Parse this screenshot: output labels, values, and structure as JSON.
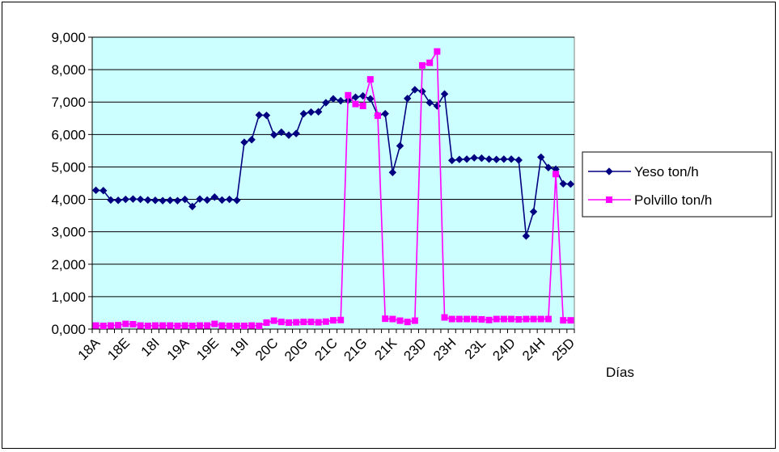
{
  "chart_data": {
    "type": "line",
    "title": "",
    "xlabel": "Días",
    "ylabel": "",
    "ylim": [
      0,
      9000
    ],
    "y_ticks": [
      0,
      1000,
      2000,
      3000,
      4000,
      5000,
      6000,
      7000,
      8000,
      9000
    ],
    "y_tick_labels": [
      "0,000",
      "1,000",
      "2,000",
      "3,000",
      "4,000",
      "5,000",
      "6,000",
      "7,000",
      "8,000",
      "9,000"
    ],
    "x_tick_labels": [
      "18A",
      "18E",
      "18I",
      "19A",
      "19E",
      "19I",
      "20C",
      "20G",
      "21C",
      "21G",
      "21K",
      "23D",
      "23H",
      "23L",
      "24D",
      "24H",
      "25D"
    ],
    "x_tick_every": 4,
    "grid": "horizontal",
    "plot_background": "#ccffff",
    "legend_position": "right",
    "series": [
      {
        "name": "Yeso ton/h",
        "color": "#000080",
        "marker": "diamond",
        "values": [
          4280,
          4270,
          3980,
          3970,
          4000,
          4010,
          4000,
          3980,
          3970,
          3960,
          3970,
          3960,
          4000,
          3780,
          4010,
          3980,
          4070,
          3980,
          4000,
          3970,
          5760,
          5840,
          6600,
          6590,
          5990,
          6070,
          5980,
          6030,
          6640,
          6690,
          6700,
          6980,
          7100,
          7040,
          7050,
          7150,
          7190,
          7100,
          6590,
          6640,
          4830,
          5650,
          7110,
          7380,
          7330,
          6980,
          6880,
          7250,
          5200,
          5230,
          5240,
          5280,
          5270,
          5240,
          5230,
          5240,
          5240,
          5210,
          2870,
          3620,
          5300,
          4980,
          4930,
          4480,
          4470
        ]
      },
      {
        "name": "Polvillo ton/h",
        "color": "#ff00ff",
        "marker": "square",
        "values": [
          110,
          100,
          110,
          120,
          160,
          150,
          110,
          100,
          110,
          110,
          110,
          100,
          110,
          100,
          110,
          110,
          160,
          110,
          100,
          100,
          100,
          110,
          100,
          200,
          260,
          220,
          200,
          210,
          220,
          220,
          210,
          230,
          270,
          280,
          7210,
          6940,
          6880,
          7700,
          6580,
          320,
          310,
          260,
          220,
          260,
          8130,
          8210,
          8560,
          360,
          310,
          310,
          310,
          310,
          300,
          280,
          310,
          310,
          310,
          300,
          310,
          310,
          310,
          310,
          4780,
          270,
          270
        ]
      }
    ]
  }
}
